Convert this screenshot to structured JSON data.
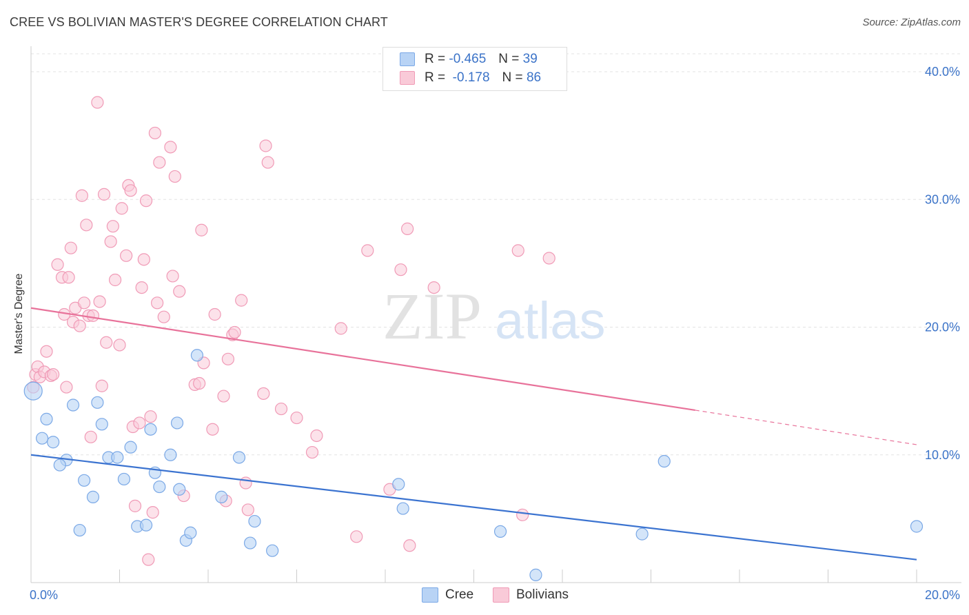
{
  "title": "CREE VS BOLIVIAN MASTER'S DEGREE CORRELATION CHART",
  "source": "Source: ZipAtlas.com",
  "watermark": {
    "zip": "ZIP",
    "atlas": "atlas"
  },
  "legend": {
    "rows": [
      {
        "r_label": "R =",
        "r_value": "-0.465",
        "n_label": "N =",
        "n_value": "39"
      },
      {
        "r_label": "R =",
        "r_value": "-0.178",
        "n_label": "N =",
        "n_value": "86"
      }
    ]
  },
  "bottom_legend": {
    "cree": "Cree",
    "bolivians": "Bolivians"
  },
  "colors": {
    "cree_fill": "#b8d3f5",
    "cree_stroke": "#7aa8e6",
    "cree_line": "#3b73d0",
    "bol_fill": "#f9cad8",
    "bol_stroke": "#f09ab6",
    "bol_line": "#e8729a",
    "axis_text": "#3b73c8"
  },
  "chart_data": {
    "type": "scatter",
    "title": "CREE VS BOLIVIAN MASTER'S DEGREE CORRELATION CHART",
    "xlabel": "",
    "ylabel": "Master's Degree",
    "xlim": [
      0,
      20
    ],
    "ylim": [
      0,
      42
    ],
    "x_tick_labels": [
      "0.0%",
      "20.0%"
    ],
    "y_ticks": [
      10,
      20,
      30,
      40
    ],
    "y_tick_labels": [
      "10.0%",
      "20.0%",
      "30.0%",
      "40.0%"
    ],
    "grid": true,
    "legend_position": "top-center",
    "series": [
      {
        "name": "Cree",
        "points": [
          [
            0.05,
            15.0
          ],
          [
            0.35,
            12.8
          ],
          [
            0.25,
            11.3
          ],
          [
            0.5,
            11.0
          ],
          [
            0.95,
            13.9
          ],
          [
            0.8,
            9.6
          ],
          [
            0.65,
            9.2
          ],
          [
            1.2,
            8.0
          ],
          [
            1.4,
            6.7
          ],
          [
            1.1,
            4.1
          ],
          [
            1.5,
            14.1
          ],
          [
            1.6,
            12.4
          ],
          [
            1.75,
            9.8
          ],
          [
            1.95,
            9.8
          ],
          [
            2.1,
            8.1
          ],
          [
            2.25,
            10.6
          ],
          [
            2.4,
            4.4
          ],
          [
            2.6,
            4.5
          ],
          [
            2.7,
            12.0
          ],
          [
            2.8,
            8.6
          ],
          [
            2.9,
            7.5
          ],
          [
            3.15,
            10.0
          ],
          [
            3.3,
            12.5
          ],
          [
            3.35,
            7.3
          ],
          [
            3.5,
            3.3
          ],
          [
            3.6,
            3.9
          ],
          [
            3.75,
            17.8
          ],
          [
            4.3,
            6.7
          ],
          [
            4.7,
            9.8
          ],
          [
            4.95,
            3.1
          ],
          [
            5.05,
            4.8
          ],
          [
            5.45,
            2.5
          ],
          [
            8.3,
            7.7
          ],
          [
            8.4,
            5.8
          ],
          [
            10.6,
            4.0
          ],
          [
            11.4,
            0.6
          ],
          [
            13.8,
            3.8
          ],
          [
            14.3,
            9.5
          ],
          [
            20.0,
            4.4
          ]
        ],
        "trend": {
          "x": [
            0,
            20
          ],
          "y": [
            10.0,
            1.8
          ]
        }
      },
      {
        "name": "Bolivians",
        "points": [
          [
            0.05,
            15.3
          ],
          [
            0.1,
            16.3
          ],
          [
            0.15,
            16.9
          ],
          [
            0.2,
            16.1
          ],
          [
            0.3,
            16.5
          ],
          [
            0.35,
            18.1
          ],
          [
            0.45,
            16.2
          ],
          [
            0.5,
            16.3
          ],
          [
            0.6,
            24.9
          ],
          [
            0.7,
            23.9
          ],
          [
            0.75,
            21.0
          ],
          [
            0.8,
            15.3
          ],
          [
            0.85,
            23.9
          ],
          [
            0.9,
            26.2
          ],
          [
            0.95,
            20.4
          ],
          [
            1.0,
            21.5
          ],
          [
            1.1,
            20.1
          ],
          [
            1.15,
            30.3
          ],
          [
            1.2,
            21.9
          ],
          [
            1.25,
            28.0
          ],
          [
            1.3,
            20.9
          ],
          [
            1.35,
            11.4
          ],
          [
            1.4,
            20.9
          ],
          [
            1.5,
            37.6
          ],
          [
            1.55,
            22.0
          ],
          [
            1.6,
            15.4
          ],
          [
            1.65,
            30.4
          ],
          [
            1.7,
            18.8
          ],
          [
            1.8,
            26.7
          ],
          [
            1.85,
            27.9
          ],
          [
            1.9,
            23.7
          ],
          [
            2.0,
            18.6
          ],
          [
            2.05,
            29.3
          ],
          [
            2.15,
            25.6
          ],
          [
            2.2,
            31.1
          ],
          [
            2.25,
            30.7
          ],
          [
            2.3,
            12.2
          ],
          [
            2.35,
            6.0
          ],
          [
            2.45,
            12.5
          ],
          [
            2.5,
            23.1
          ],
          [
            2.55,
            25.3
          ],
          [
            2.6,
            29.9
          ],
          [
            2.65,
            1.8
          ],
          [
            2.7,
            13.0
          ],
          [
            2.75,
            5.5
          ],
          [
            2.8,
            35.2
          ],
          [
            2.85,
            21.9
          ],
          [
            2.9,
            32.9
          ],
          [
            3.0,
            20.8
          ],
          [
            3.15,
            34.1
          ],
          [
            3.2,
            24.0
          ],
          [
            3.25,
            31.8
          ],
          [
            3.35,
            22.8
          ],
          [
            3.45,
            6.8
          ],
          [
            3.7,
            15.5
          ],
          [
            3.8,
            15.6
          ],
          [
            3.85,
            27.6
          ],
          [
            3.9,
            17.2
          ],
          [
            4.1,
            12.0
          ],
          [
            4.15,
            21.0
          ],
          [
            4.35,
            14.6
          ],
          [
            4.4,
            6.4
          ],
          [
            4.45,
            17.5
          ],
          [
            4.55,
            19.4
          ],
          [
            4.6,
            19.6
          ],
          [
            4.75,
            22.1
          ],
          [
            4.85,
            7.8
          ],
          [
            4.9,
            5.7
          ],
          [
            5.25,
            14.8
          ],
          [
            5.3,
            34.2
          ],
          [
            5.35,
            32.9
          ],
          [
            5.65,
            13.6
          ],
          [
            6.0,
            12.9
          ],
          [
            6.35,
            10.2
          ],
          [
            6.45,
            11.5
          ],
          [
            7.0,
            19.9
          ],
          [
            7.35,
            3.6
          ],
          [
            7.6,
            26.0
          ],
          [
            8.1,
            7.3
          ],
          [
            8.35,
            24.5
          ],
          [
            8.5,
            27.7
          ],
          [
            8.55,
            2.9
          ],
          [
            9.1,
            23.1
          ],
          [
            11.0,
            26.0
          ],
          [
            11.1,
            5.3
          ],
          [
            11.7,
            25.4
          ]
        ],
        "trend": {
          "x": [
            0,
            15
          ],
          "y": [
            21.5,
            13.5
          ],
          "dashed_to": {
            "x": 20,
            "y": 10.8
          }
        }
      }
    ]
  }
}
